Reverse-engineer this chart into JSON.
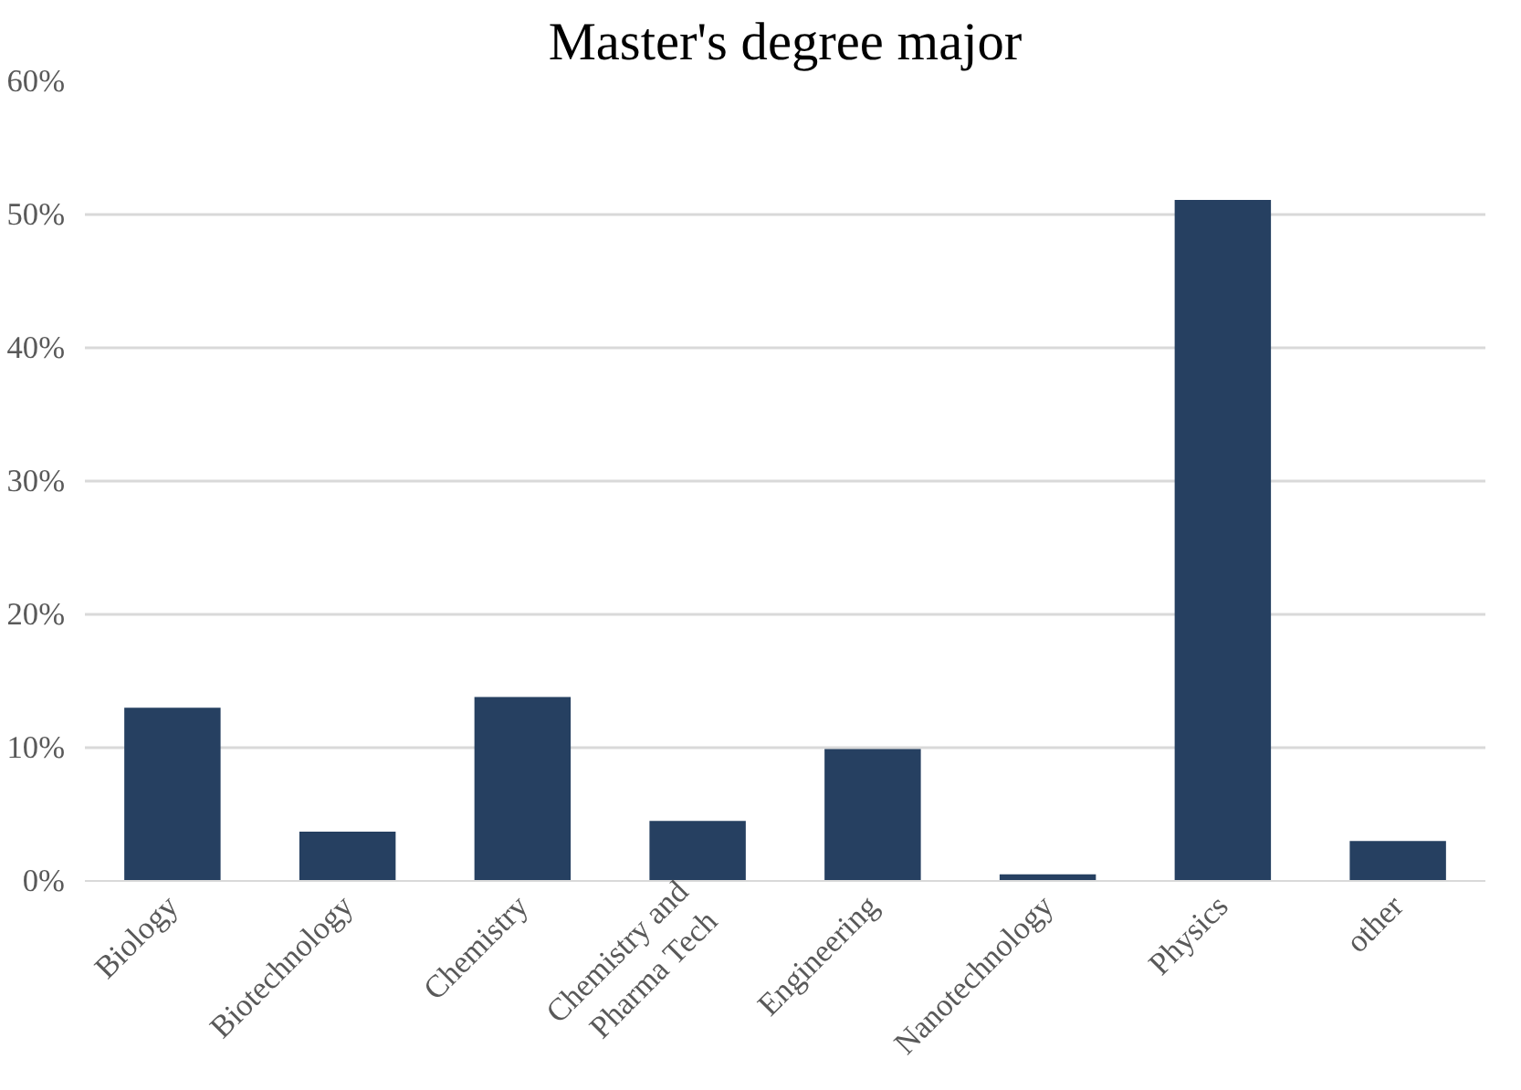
{
  "chart_data": {
    "type": "bar",
    "title": "Master's degree major",
    "categories": [
      "Biology",
      "Biotechnology",
      "Chemistry",
      "Chemistry and\nPharma Tech",
      "Engineering",
      "Nanotechnology",
      "Physics",
      "other"
    ],
    "values": [
      13.0,
      3.7,
      13.8,
      4.5,
      9.9,
      0.5,
      51.1,
      3.0
    ],
    "color": "#264061",
    "ylim": [
      0,
      60
    ],
    "yticks": [
      {
        "value": 0,
        "label": "0%"
      },
      {
        "value": 10,
        "label": "10%"
      },
      {
        "value": 20,
        "label": "20%"
      },
      {
        "value": 30,
        "label": "30%"
      },
      {
        "value": 40,
        "label": "40%"
      },
      {
        "value": 50,
        "label": "50%"
      },
      {
        "value": 60,
        "label": "60%"
      }
    ],
    "grid": "y"
  }
}
